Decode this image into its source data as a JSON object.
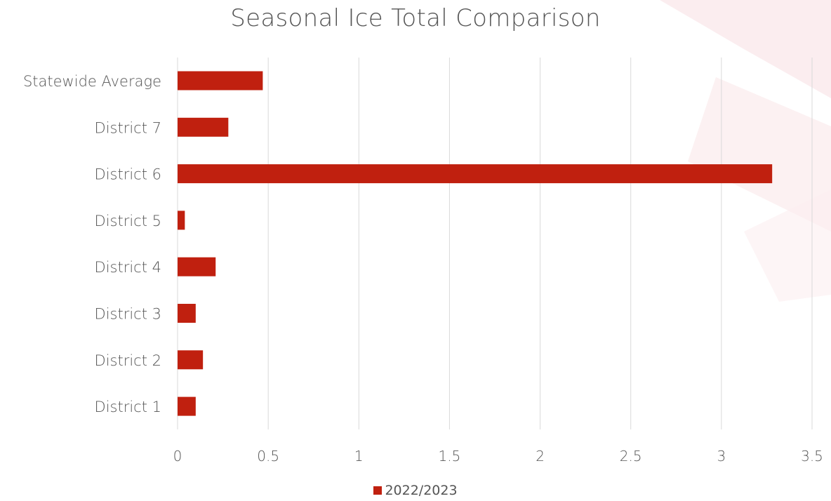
{
  "chart_data": {
    "type": "bar",
    "orientation": "horizontal",
    "title": "Seasonal Ice Total Comparison",
    "categories": [
      "Statewide Average",
      "District 7",
      "District 6",
      "District 5",
      "District 4",
      "District 3",
      "District 2",
      "District 1"
    ],
    "series": [
      {
        "name": "2022/2023",
        "values": [
          0.47,
          0.28,
          3.28,
          0.04,
          0.21,
          0.1,
          0.14,
          0.1
        ]
      }
    ],
    "xlim": [
      0,
      3.5
    ],
    "x_ticks": [
      "0",
      "0.5",
      "1",
      "1.5",
      "2",
      "2.5",
      "3",
      "3.5"
    ],
    "grid": "vertical",
    "legend_position": "bottom"
  },
  "colors": {
    "bar": "#c0200f",
    "grid": "#d9d9d9",
    "text": "#555555",
    "decoration": "#f8e4e6"
  }
}
